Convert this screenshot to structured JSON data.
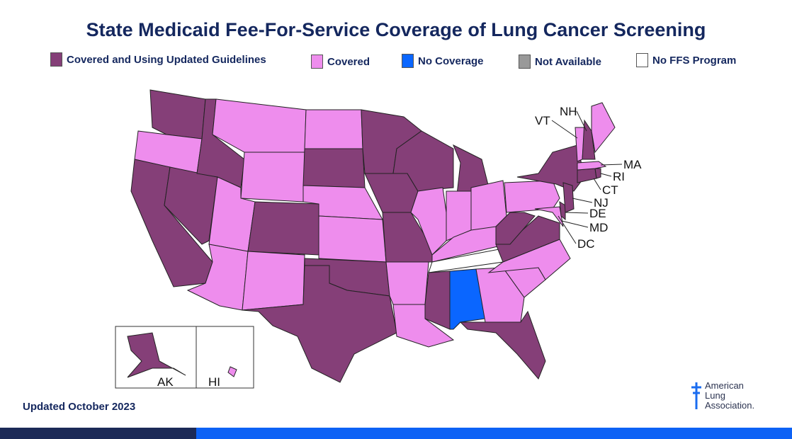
{
  "title": "State Medicaid Fee-For-Service Coverage of Lung Cancer Screening",
  "legend": [
    {
      "key": "updated",
      "label": "Covered and Using Updated Guidelines",
      "color": "#853f78"
    },
    {
      "key": "covered",
      "label": "Covered",
      "color": "#ee8ded"
    },
    {
      "key": "none",
      "label": "No Coverage",
      "color": "#0a66ff"
    },
    {
      "key": "na",
      "label": "Not Available",
      "color": "#999999"
    },
    {
      "key": "noffs",
      "label": "No FFS Program",
      "color": "#ffffff"
    }
  ],
  "states": {
    "WA": "updated",
    "OR": "covered",
    "CA": "updated",
    "NV": "updated",
    "ID": "updated",
    "MT": "covered",
    "WY": "covered",
    "UT": "covered",
    "AZ": "covered",
    "CO": "updated",
    "NM": "covered",
    "ND": "covered",
    "SD": "updated",
    "NE": "covered",
    "KS": "covered",
    "OK": "updated",
    "TX": "updated",
    "MN": "updated",
    "IA": "updated",
    "MO": "updated",
    "AR": "covered",
    "LA": "covered",
    "WI": "updated",
    "IL": "covered",
    "MI": "updated",
    "IN": "covered",
    "OH": "covered",
    "KY": "covered",
    "TN": "noffs",
    "MS": "updated",
    "AL": "none",
    "GA": "covered",
    "FL": "updated",
    "SC": "covered",
    "NC": "covered",
    "VA": "updated",
    "WV": "updated",
    "PA": "covered",
    "NY": "updated",
    "MD": "covered",
    "DE": "updated",
    "NJ": "updated",
    "CT": "updated",
    "RI": "updated",
    "MA": "covered",
    "VT": "covered",
    "NH": "updated",
    "ME": "covered",
    "AK": "updated",
    "HI": "covered",
    "DC": "covered"
  },
  "labels": {
    "VT": "VT",
    "NH": "NH",
    "MA": "MA",
    "RI": "RI",
    "CT": "CT",
    "NJ": "NJ",
    "DE": "DE",
    "MD": "MD",
    "DC": "DC",
    "AK": "AK",
    "HI": "HI"
  },
  "footer": {
    "updated": "Updated October 2023"
  },
  "logo": {
    "line1": "American",
    "line2": "Lung",
    "line3": "Association."
  }
}
